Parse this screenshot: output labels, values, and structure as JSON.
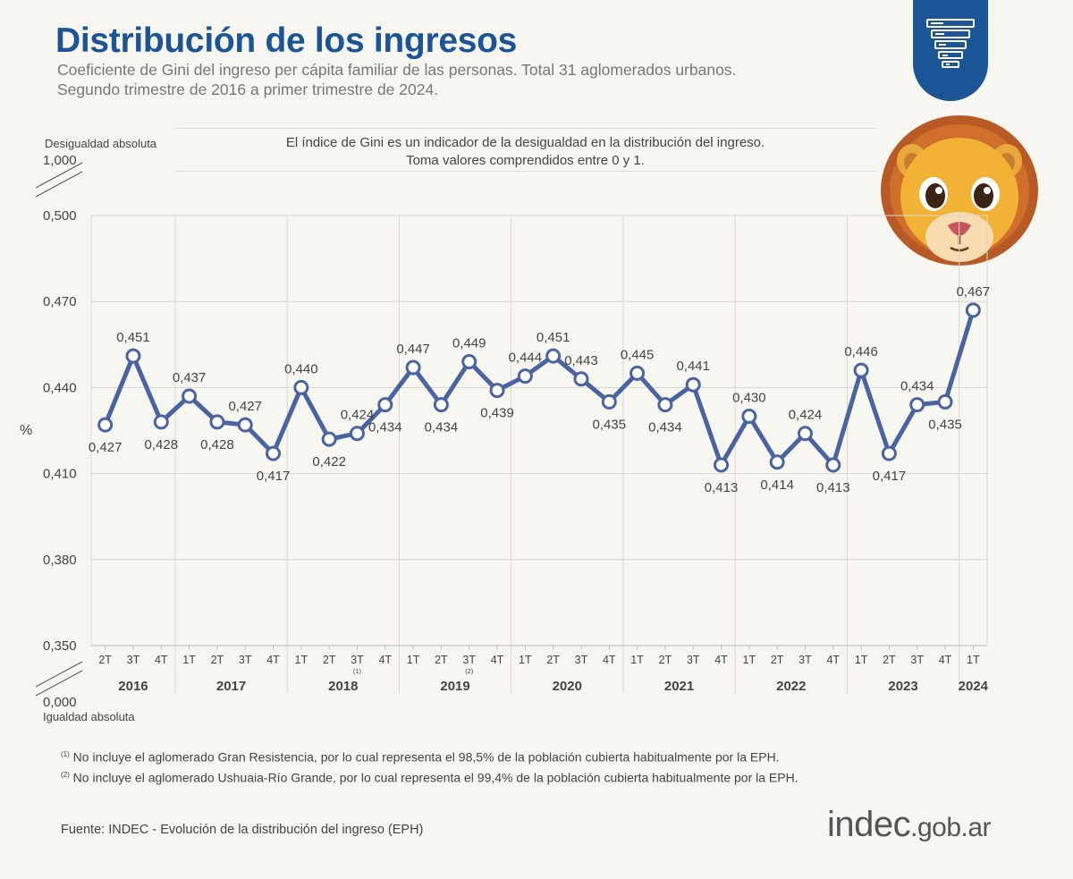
{
  "header": {
    "title": "Distribución de los ingresos",
    "subtitle_line1": "Coeficiente de Gini del ingreso per cápita familiar de las personas. Total 31 aglomerados urbanos.",
    "subtitle_line2": "Segundo trimestre de 2016 a primer trimestre de 2024."
  },
  "note": {
    "line1": "El índice de Gini es un indicador de la desigualdad en la distribución del ingreso.",
    "line2": "Toma valores comprendidos entre 0 y 1."
  },
  "axis": {
    "top_label": "Desigualdad absoluta",
    "top_value": "1,000",
    "bottom_value": "0,000",
    "bottom_label": "Igualdad absoluta",
    "unit": "%"
  },
  "chart_data": {
    "type": "line",
    "ylim": [
      0.35,
      0.5
    ],
    "yticks": [
      "0,350",
      "0,380",
      "0,410",
      "0,440",
      "0,470",
      "0,500"
    ],
    "ytick_values": [
      0.35,
      0.38,
      0.41,
      0.44,
      0.47,
      0.5
    ],
    "quarters": [
      "2T",
      "3T",
      "4T",
      "1T",
      "2T",
      "3T",
      "4T",
      "1T",
      "2T",
      "3T",
      "4T",
      "1T",
      "2T",
      "3T",
      "4T",
      "1T",
      "2T",
      "3T",
      "4T",
      "1T",
      "2T",
      "3T",
      "4T",
      "1T",
      "2T",
      "3T",
      "4T",
      "1T",
      "2T",
      "3T",
      "4T",
      "1T"
    ],
    "quarter_notes": {
      "9": "(1)",
      "13": "(2)"
    },
    "years": [
      {
        "label": "2016",
        "start": 0,
        "end": 2
      },
      {
        "label": "2017",
        "start": 3,
        "end": 6
      },
      {
        "label": "2018",
        "start": 7,
        "end": 10
      },
      {
        "label": "2019",
        "start": 11,
        "end": 14
      },
      {
        "label": "2020",
        "start": 15,
        "end": 18
      },
      {
        "label": "2021",
        "start": 19,
        "end": 22
      },
      {
        "label": "2022",
        "start": 23,
        "end": 26
      },
      {
        "label": "2023",
        "start": 27,
        "end": 30
      },
      {
        "label": "2024",
        "start": 31,
        "end": 31
      }
    ],
    "values": [
      0.427,
      0.451,
      0.428,
      0.437,
      0.428,
      0.427,
      0.417,
      0.44,
      0.422,
      0.424,
      0.434,
      0.447,
      0.434,
      0.449,
      0.439,
      0.444,
      0.451,
      0.443,
      0.435,
      0.445,
      0.434,
      0.441,
      0.413,
      0.43,
      0.414,
      0.424,
      0.413,
      0.446,
      0.417,
      0.434,
      0.435,
      0.467
    ],
    "value_labels": [
      "0,427",
      "0,451",
      "0,428",
      "0,437",
      "0,428",
      "0,427",
      "0,417",
      "0,440",
      "0,422",
      "0,424",
      "0,434",
      "0,447",
      "0,434",
      "0,449",
      "0,439",
      "0,444",
      "0,451",
      "0,443",
      "0,435",
      "0,445",
      "0,434",
      "0,441",
      "0,413",
      "0,430",
      "0,414",
      "0,424",
      "0,413",
      "0,446",
      "0,417",
      "0,434",
      "0,435",
      "0,467"
    ],
    "label_pos": [
      "below",
      "above",
      "below",
      "above",
      "below",
      "above",
      "below",
      "above",
      "below",
      "above",
      "below",
      "above",
      "below",
      "above",
      "below",
      "above",
      "above",
      "above",
      "below",
      "above",
      "below",
      "above",
      "below",
      "above",
      "below",
      "above",
      "below",
      "above",
      "below",
      "above",
      "below",
      "above"
    ],
    "line_color": "#4a64a2",
    "marker_fill": "#ffffff"
  },
  "footnotes": {
    "n1_mark": "(1)",
    "n1_text": " No incluye el aglomerado Gran Resistencia, por lo cual representa el 98,5% de la población cubierta habitualmente por la EPH.",
    "n2_mark": "(2)",
    "n2_text": " No incluye el aglomerado Ushuaia-Río Grande, por lo cual representa el 99,4% de la población cubierta habitualmente por la EPH."
  },
  "source": "Fuente: INDEC - Evolución de la distribución del ingreso (EPH)",
  "logo": {
    "main": "indec",
    "suffix": ".gob.ar"
  },
  "colors": {
    "brand": "#1c5596",
    "background": "#f8f6f0"
  }
}
